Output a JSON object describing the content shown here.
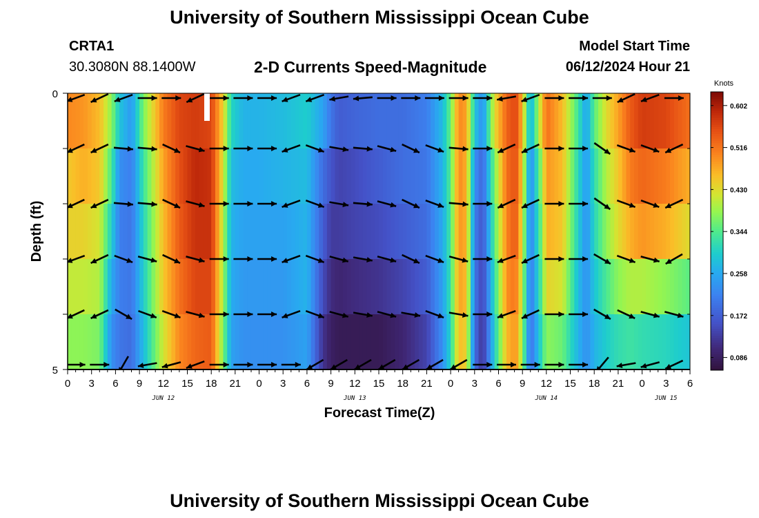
{
  "header": {
    "title": "University of Southern Mississippi Ocean Cube",
    "station": "CRTA1",
    "coords": "30.3080N  88.1400W",
    "chart_title": "2-D Currents Speed-Magnitude",
    "model_label": "Model Start Time",
    "model_value": "06/12/2024 Hour 21"
  },
  "footer": {
    "title": "University of Southern Mississippi Ocean Cube"
  },
  "chart_data": {
    "type": "heatmap",
    "title": "2-D Currents Speed-Magnitude",
    "xlabel": "Forecast Time(Z)",
    "ylabel": "Depth (ft)",
    "x_tick_labels": [
      "0",
      "3",
      "6",
      "9",
      "12",
      "15",
      "18",
      "21",
      "0",
      "3",
      "6",
      "9",
      "12",
      "15",
      "18",
      "21",
      "0",
      "3",
      "6",
      "9",
      "12",
      "15",
      "18",
      "21",
      "0",
      "3",
      "6"
    ],
    "date_labels": [
      {
        "label": "JUN 12",
        "hour_index": 12
      },
      {
        "label": "JUN 13",
        "hour_index": 36
      },
      {
        "label": "JUN 14",
        "hour_index": 60
      },
      {
        "label": "JUN 15",
        "hour_index": 75
      }
    ],
    "x_range_hours": [
      0,
      78
    ],
    "y_ticks": [
      "0",
      "5"
    ],
    "ylim": [
      0,
      5
    ],
    "depth_layers": 5,
    "colorbar": {
      "label": "Knots",
      "ticks": [
        0.086,
        0.172,
        0.258,
        0.344,
        0.43,
        0.516,
        0.602
      ],
      "tick_labels": [
        "0.086",
        "0.172",
        "0.258",
        "0.344",
        "0.430",
        "0.516",
        "0.602"
      ],
      "range": [
        0.06,
        0.63
      ]
    },
    "anchor_hours": [
      0,
      2,
      4,
      5.5,
      6.5,
      8,
      9.5,
      12,
      14,
      16,
      18,
      19.5,
      20.5,
      22,
      24,
      27,
      30,
      32,
      33,
      34,
      36,
      39,
      42,
      45,
      47,
      48,
      49,
      50,
      51,
      52,
      53.5,
      55,
      55.6,
      56.3,
      57,
      58,
      59.5,
      60,
      62,
      64,
      65,
      66,
      67.5,
      69,
      70.5,
      72,
      75,
      78
    ],
    "speed_profiles": [
      [
        0.5,
        0.49,
        0.46,
        0.38,
        0.29,
        0.24,
        0.37,
        0.51,
        0.56,
        0.57,
        0.56,
        0.44,
        0.31,
        0.27,
        0.27,
        0.28,
        0.3,
        0.25,
        0.2,
        0.17,
        0.18,
        0.19,
        0.19,
        0.21,
        0.28,
        0.36,
        0.5,
        0.48,
        0.29,
        0.23,
        0.43,
        0.53,
        0.55,
        0.55,
        0.46,
        0.26,
        0.46,
        0.52,
        0.46,
        0.33,
        0.25,
        0.35,
        0.43,
        0.48,
        0.54,
        0.57,
        0.56,
        0.52
      ],
      [
        0.45,
        0.47,
        0.45,
        0.34,
        0.23,
        0.21,
        0.33,
        0.48,
        0.55,
        0.59,
        0.58,
        0.42,
        0.28,
        0.26,
        0.26,
        0.27,
        0.28,
        0.19,
        0.16,
        0.14,
        0.15,
        0.17,
        0.19,
        0.2,
        0.27,
        0.35,
        0.5,
        0.47,
        0.23,
        0.18,
        0.37,
        0.52,
        0.54,
        0.54,
        0.44,
        0.22,
        0.4,
        0.49,
        0.46,
        0.31,
        0.24,
        0.32,
        0.4,
        0.45,
        0.51,
        0.53,
        0.51,
        0.47
      ],
      [
        0.44,
        0.44,
        0.42,
        0.3,
        0.21,
        0.2,
        0.31,
        0.46,
        0.54,
        0.58,
        0.58,
        0.4,
        0.27,
        0.25,
        0.25,
        0.25,
        0.27,
        0.17,
        0.13,
        0.13,
        0.14,
        0.15,
        0.17,
        0.19,
        0.26,
        0.34,
        0.49,
        0.47,
        0.21,
        0.16,
        0.35,
        0.5,
        0.53,
        0.53,
        0.42,
        0.21,
        0.38,
        0.47,
        0.45,
        0.3,
        0.23,
        0.31,
        0.38,
        0.43,
        0.47,
        0.49,
        0.47,
        0.43
      ],
      [
        0.41,
        0.41,
        0.4,
        0.26,
        0.21,
        0.2,
        0.3,
        0.45,
        0.52,
        0.56,
        0.56,
        0.39,
        0.26,
        0.24,
        0.24,
        0.24,
        0.27,
        0.15,
        0.11,
        0.1,
        0.11,
        0.12,
        0.14,
        0.17,
        0.25,
        0.33,
        0.48,
        0.46,
        0.2,
        0.14,
        0.32,
        0.49,
        0.51,
        0.5,
        0.4,
        0.2,
        0.36,
        0.44,
        0.42,
        0.28,
        0.23,
        0.29,
        0.34,
        0.38,
        0.4,
        0.4,
        0.38,
        0.35
      ],
      [
        0.38,
        0.38,
        0.37,
        0.23,
        0.2,
        0.19,
        0.28,
        0.42,
        0.5,
        0.53,
        0.54,
        0.37,
        0.25,
        0.23,
        0.23,
        0.23,
        0.25,
        0.12,
        0.09,
        0.08,
        0.08,
        0.08,
        0.1,
        0.14,
        0.23,
        0.31,
        0.46,
        0.44,
        0.19,
        0.12,
        0.3,
        0.46,
        0.48,
        0.48,
        0.38,
        0.19,
        0.33,
        0.38,
        0.36,
        0.27,
        0.23,
        0.27,
        0.3,
        0.32,
        0.33,
        0.32,
        0.31,
        0.29
      ]
    ],
    "arrow_hours": [
      1,
      4,
      7,
      10,
      13,
      16,
      19,
      22,
      25,
      28,
      31,
      34,
      37,
      40,
      43,
      46,
      49,
      52,
      55,
      58,
      61,
      64,
      67,
      70,
      73,
      76
    ],
    "arrow_directions_deg": [
      [
        160,
        155,
        160,
        0,
        0,
        155,
        0,
        0,
        0,
        160,
        160,
        170,
        175,
        0,
        0,
        0,
        0,
        0,
        170,
        160,
        0,
        0,
        0,
        155,
        160,
        0
      ],
      [
        155,
        155,
        5,
        5,
        25,
        15,
        0,
        0,
        0,
        160,
        20,
        10,
        5,
        15,
        25,
        20,
        5,
        0,
        155,
        155,
        0,
        0,
        35,
        20,
        20,
        155
      ],
      [
        155,
        155,
        5,
        5,
        25,
        15,
        0,
        0,
        0,
        160,
        20,
        10,
        5,
        15,
        25,
        20,
        5,
        0,
        155,
        155,
        0,
        0,
        35,
        20,
        20,
        155
      ],
      [
        160,
        155,
        20,
        15,
        25,
        15,
        0,
        0,
        0,
        160,
        20,
        15,
        10,
        15,
        25,
        20,
        15,
        0,
        160,
        155,
        0,
        0,
        30,
        20,
        15,
        150
      ],
      [
        155,
        155,
        30,
        20,
        20,
        15,
        0,
        0,
        0,
        160,
        20,
        15,
        10,
        15,
        10,
        20,
        10,
        0,
        160,
        155,
        0,
        0,
        30,
        25,
        15,
        15
      ],
      [
        0,
        0,
        120,
        170,
        165,
        160,
        0,
        0,
        0,
        0,
        150,
        150,
        150,
        150,
        150,
        150,
        150,
        0,
        0,
        0,
        0,
        0,
        130,
        170,
        165,
        155
      ]
    ]
  }
}
